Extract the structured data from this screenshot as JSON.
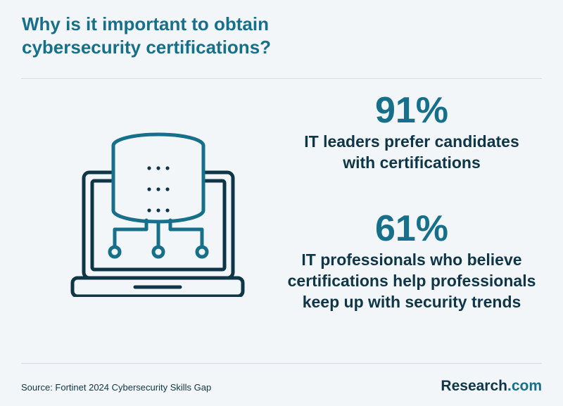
{
  "header": {
    "title_line1": "Why is it important to obtain",
    "title_line2": "cybersecurity certifications?"
  },
  "illustration": {
    "icon": "laptop-database-network-icon",
    "colors": {
      "outline": "#0f3647",
      "accent": "#17708a"
    }
  },
  "stats": [
    {
      "value": "91%",
      "desc_lines": [
        "IT leaders prefer candidates",
        "with certifications"
      ]
    },
    {
      "value": "61%",
      "desc_lines": [
        "IT professionals who believe",
        "certifications help professionals",
        "keep up with security trends"
      ]
    }
  ],
  "footer": {
    "source": "Source: Fortinet 2024 Cybersecurity Skills Gap",
    "brand_main": "Research",
    "brand_suffix": ".com"
  },
  "colors": {
    "background": "#f3f6f9",
    "accent": "#17708a",
    "dark": "#0f3647",
    "divider": "#d6dde3"
  }
}
